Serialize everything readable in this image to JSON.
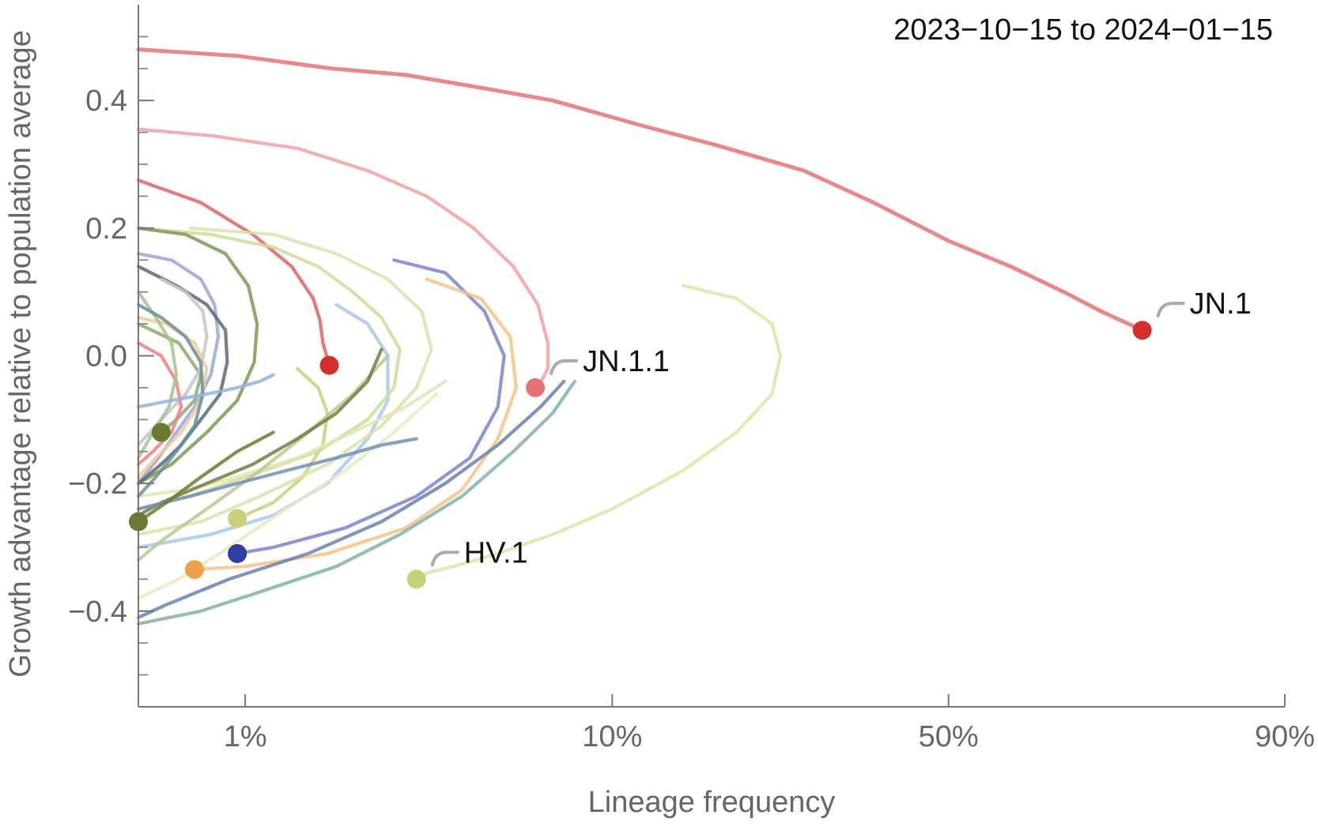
{
  "chart_data": {
    "type": "line",
    "title": "",
    "date_range_label": "2023−10−15 to 2024−01−15",
    "xlabel": "Lineage frequency",
    "ylabel": "Growth advantage relative to population average",
    "x_scale": "logit",
    "xlim": [
      0.005,
      0.9
    ],
    "ylim": [
      -0.55,
      0.55
    ],
    "x_ticks": [
      {
        "value": 0.01,
        "label": "1%"
      },
      {
        "value": 0.1,
        "label": "10%"
      },
      {
        "value": 0.5,
        "label": "50%"
      },
      {
        "value": 0.9,
        "label": "90%"
      }
    ],
    "y_ticks": [
      {
        "value": 0.4,
        "label": "0.4"
      },
      {
        "value": 0.2,
        "label": "0.2"
      },
      {
        "value": 0.0,
        "label": "0.0"
      },
      {
        "value": -0.2,
        "label": "−0.2"
      },
      {
        "value": -0.4,
        "label": "−0.4"
      }
    ],
    "y_minor_step": 0.05,
    "grid": false,
    "legend": "none",
    "series": [
      {
        "name": "JN.1",
        "color": "#e57373",
        "endpoint_color": "#d32f2f",
        "labeled": true,
        "x": [
          0.005,
          0.0095,
          0.0175,
          0.028,
          0.045,
          0.07,
          0.12,
          0.18,
          0.28,
          0.38,
          0.5,
          0.6,
          0.68,
          0.73,
          0.78
        ],
        "y": [
          0.48,
          0.47,
          0.45,
          0.44,
          0.42,
          0.4,
          0.36,
          0.33,
          0.29,
          0.24,
          0.18,
          0.14,
          0.1,
          0.07,
          0.04
        ]
      },
      {
        "name": "JN.1.1",
        "color": "#f2a0a0",
        "endpoint_color": "#e57373",
        "labeled": true,
        "x": [
          0.005,
          0.008,
          0.014,
          0.022,
          0.032,
          0.043,
          0.055,
          0.064,
          0.068,
          0.068,
          0.066,
          0.063
        ],
        "y": [
          0.355,
          0.345,
          0.325,
          0.29,
          0.25,
          0.2,
          0.14,
          0.08,
          0.02,
          -0.02,
          -0.035,
          -0.05
        ]
      },
      {
        "name": "HV.1",
        "color": "#dde5a6",
        "endpoint_color": "#c8d17a",
        "labeled": true,
        "x": [
          0.15,
          0.2,
          0.24,
          0.25,
          0.24,
          0.2,
          0.15,
          0.1,
          0.07,
          0.05,
          0.038,
          0.032,
          0.03
        ],
        "y": [
          0.11,
          0.09,
          0.05,
          0.0,
          -0.06,
          -0.12,
          -0.18,
          -0.24,
          -0.28,
          -0.31,
          -0.33,
          -0.34,
          -0.35
        ]
      },
      {
        "name": "",
        "color": "#e06060",
        "endpoint_color": "#d32f2f",
        "labeled": false,
        "x": [
          0.005,
          0.0075,
          0.0105,
          0.0135,
          0.0155,
          0.0162,
          0.0165,
          0.0172
        ],
        "y": [
          0.275,
          0.24,
          0.19,
          0.14,
          0.09,
          0.055,
          0.02,
          -0.015
        ]
      },
      {
        "name": "",
        "color": "#7986cb",
        "endpoint_color": "#303f9f",
        "labeled": false,
        "x": [
          0.026,
          0.036,
          0.046,
          0.052,
          0.05,
          0.042,
          0.03,
          0.019,
          0.012,
          0.0095
        ],
        "y": [
          0.15,
          0.13,
          0.07,
          0.0,
          -0.08,
          -0.16,
          -0.22,
          -0.27,
          -0.3,
          -0.31
        ]
      },
      {
        "name": "",
        "color": "#f5c38a",
        "endpoint_color": "#ef9f4a",
        "labeled": false,
        "x": [
          0.032,
          0.045,
          0.054,
          0.056,
          0.05,
          0.04,
          0.028,
          0.017,
          0.01,
          0.0072
        ],
        "y": [
          0.12,
          0.09,
          0.03,
          -0.05,
          -0.13,
          -0.21,
          -0.27,
          -0.31,
          -0.33,
          -0.335
        ]
      },
      {
        "name": "",
        "color": "#8fa86a",
        "endpoint_color": "#6b7a33",
        "labeled": false,
        "x": [
          0.005,
          0.0065,
          0.0075,
          0.0072,
          0.0064,
          0.0058
        ],
        "y": [
          0.05,
          0.02,
          -0.03,
          -0.07,
          -0.1,
          -0.12
        ]
      },
      {
        "name": "",
        "color": "#c8d17a",
        "endpoint_color": "#c8d17a",
        "labeled": false,
        "x": [
          0.014,
          0.016,
          0.017,
          0.0165,
          0.0145,
          0.012,
          0.0095
        ],
        "y": [
          -0.02,
          -0.05,
          -0.09,
          -0.14,
          -0.19,
          -0.23,
          -0.255
        ]
      },
      {
        "name": "",
        "color": "#a5c8ec",
        "labeled": false,
        "x": [
          0.018,
          0.022,
          0.025,
          0.025,
          0.022,
          0.017,
          0.012,
          0.008,
          0.005
        ],
        "y": [
          0.08,
          0.05,
          0.0,
          -0.07,
          -0.13,
          -0.2,
          -0.25,
          -0.28,
          -0.3
        ]
      },
      {
        "name": "",
        "color": "#7fb3a8",
        "labeled": false,
        "x": [
          0.08,
          0.07,
          0.055,
          0.04,
          0.027,
          0.018,
          0.011,
          0.0075,
          0.005
        ],
        "y": [
          -0.04,
          -0.09,
          -0.15,
          -0.22,
          -0.28,
          -0.33,
          -0.37,
          -0.4,
          -0.42
        ]
      },
      {
        "name": "",
        "color": "#6a80b0",
        "labeled": false,
        "x": [
          0.075,
          0.065,
          0.05,
          0.036,
          0.024,
          0.015,
          0.009,
          0.006,
          0.005
        ],
        "y": [
          -0.04,
          -0.08,
          -0.14,
          -0.2,
          -0.26,
          -0.31,
          -0.35,
          -0.39,
          -0.41
        ]
      },
      {
        "name": "",
        "color": "#cfdc9b",
        "labeled": false,
        "x": [
          0.005,
          0.008,
          0.012,
          0.016,
          0.02,
          0.024,
          0.027,
          0.026,
          0.022,
          0.016,
          0.01,
          0.007,
          0.005
        ],
        "y": [
          0.2,
          0.19,
          0.17,
          0.14,
          0.1,
          0.06,
          0.01,
          -0.05,
          -0.1,
          -0.15,
          -0.19,
          -0.22,
          -0.24
        ]
      },
      {
        "name": "",
        "color": "#dbe3a9",
        "labeled": false,
        "x": [
          0.007,
          0.012,
          0.018,
          0.025,
          0.031,
          0.033,
          0.03,
          0.024,
          0.017,
          0.011,
          0.0075,
          0.005
        ],
        "y": [
          0.2,
          0.19,
          0.16,
          0.12,
          0.07,
          0.01,
          -0.05,
          -0.11,
          -0.17,
          -0.22,
          -0.26,
          -0.28
        ]
      },
      {
        "name": "",
        "color": "#dfe6b2",
        "labeled": false,
        "x": [
          0.036,
          0.028,
          0.02,
          0.014,
          0.0095,
          0.0068,
          0.005
        ],
        "y": [
          -0.04,
          -0.08,
          -0.12,
          -0.16,
          -0.19,
          -0.21,
          -0.22
        ]
      },
      {
        "name": "",
        "color": "#e6ebc0",
        "labeled": false,
        "x": [
          0.034,
          0.026,
          0.019,
          0.013,
          0.009,
          0.0065,
          0.005
        ],
        "y": [
          -0.06,
          -0.12,
          -0.18,
          -0.24,
          -0.3,
          -0.35,
          -0.38
        ]
      },
      {
        "name": "",
        "color": "#b8c98f",
        "labeled": false,
        "x": [
          0.025,
          0.02,
          0.015,
          0.011,
          0.0078,
          0.0058,
          0.005
        ],
        "y": [
          0.0,
          -0.06,
          -0.12,
          -0.18,
          -0.24,
          -0.29,
          -0.32
        ]
      },
      {
        "name": "",
        "color": "#6f7f3f",
        "labeled": false,
        "x": [
          0.024,
          0.022,
          0.018,
          0.014,
          0.0105,
          0.0078,
          0.0058,
          0.005
        ],
        "y": [
          0.01,
          -0.04,
          -0.09,
          -0.13,
          -0.17,
          -0.2,
          -0.23,
          -0.25
        ]
      },
      {
        "name": "",
        "color": "#7a9a55",
        "labeled": false,
        "x": [
          0.005,
          0.0068,
          0.0088,
          0.0102,
          0.0108,
          0.0106,
          0.0095,
          0.0078,
          0.0062,
          0.005
        ],
        "y": [
          0.2,
          0.19,
          0.16,
          0.11,
          0.05,
          -0.01,
          -0.07,
          -0.12,
          -0.17,
          -0.2
        ]
      },
      {
        "name": "",
        "color": "#9aa6d8",
        "labeled": false,
        "x": [
          0.005,
          0.0062,
          0.0075,
          0.0082,
          0.0084,
          0.008,
          0.0072,
          0.0064,
          0.0057,
          0.005
        ],
        "y": [
          0.16,
          0.15,
          0.12,
          0.08,
          0.03,
          -0.03,
          -0.08,
          -0.12,
          -0.16,
          -0.2
        ]
      },
      {
        "name": "",
        "color": "#5a6a70",
        "labeled": false,
        "x": [
          0.005,
          0.0064,
          0.0078,
          0.0088,
          0.0089,
          0.0085,
          0.0075,
          0.0066,
          0.0058,
          0.005
        ],
        "y": [
          0.14,
          0.11,
          0.08,
          0.04,
          -0.01,
          -0.06,
          -0.1,
          -0.14,
          -0.17,
          -0.2
        ]
      },
      {
        "name": "",
        "color": "#c7c7c7",
        "labeled": false,
        "x": [
          0.0058,
          0.0068,
          0.0076,
          0.0078,
          0.0075,
          0.0068,
          0.0058,
          0.005
        ],
        "y": [
          0.12,
          0.1,
          0.07,
          0.03,
          -0.02,
          -0.06,
          -0.1,
          -0.14
        ]
      },
      {
        "name": "",
        "color": "#f2c99a",
        "labeled": false,
        "x": [
          0.005,
          0.006,
          0.0072,
          0.0078,
          0.0075,
          0.0066,
          0.0056,
          0.005
        ],
        "y": [
          0.06,
          0.05,
          0.02,
          -0.02,
          -0.07,
          -0.12,
          -0.16,
          -0.19
        ]
      },
      {
        "name": "",
        "color": "#f08080",
        "labeled": false,
        "x": [
          0.005,
          0.0058,
          0.0064,
          0.0066,
          0.0062,
          0.0055,
          0.005
        ],
        "y": [
          0.02,
          0.0,
          -0.04,
          -0.08,
          -0.12,
          -0.15,
          -0.17
        ]
      },
      {
        "name": "",
        "color": "#a3c48b",
        "labeled": false,
        "x": [
          0.005,
          0.0056,
          0.0062,
          0.0064,
          0.0061,
          0.0055,
          0.005
        ],
        "y": [
          0.1,
          0.06,
          0.02,
          -0.03,
          -0.08,
          -0.12,
          -0.16
        ]
      },
      {
        "name": "",
        "color": "#6b8f9a",
        "labeled": false,
        "x": [
          0.005,
          0.0058,
          0.0068,
          0.0075,
          0.0076,
          0.0072,
          0.0064,
          0.0056,
          0.005
        ],
        "y": [
          0.08,
          0.06,
          0.03,
          -0.01,
          -0.06,
          -0.11,
          -0.15,
          -0.19,
          -0.22
        ]
      },
      {
        "name": "",
        "color": "#8fb4e0",
        "labeled": false,
        "x": [
          0.005,
          0.0062,
          0.0078,
          0.0095,
          0.011,
          0.012
        ],
        "y": [
          -0.08,
          -0.07,
          -0.06,
          -0.05,
          -0.04,
          -0.03
        ]
      },
      {
        "name": "",
        "color": "#6f8fb8",
        "labeled": false,
        "x": [
          0.005,
          0.007,
          0.0095,
          0.013,
          0.018,
          0.024,
          0.03
        ],
        "y": [
          -0.24,
          -0.22,
          -0.2,
          -0.18,
          -0.16,
          -0.14,
          -0.13
        ]
      },
      {
        "name": "",
        "color": "#6b7a33",
        "endpoint_color": "#6b7a33",
        "labeled": false,
        "x": [
          0.012,
          0.0095,
          0.0075,
          0.006,
          0.005
        ],
        "y": [
          -0.12,
          -0.15,
          -0.19,
          -0.23,
          -0.26
        ]
      }
    ],
    "labels": [
      {
        "series": "JN.1",
        "text": "JN.1"
      },
      {
        "series": "JN.1.1",
        "text": "JN.1.1"
      },
      {
        "series": "HV.1",
        "text": "HV.1"
      }
    ]
  }
}
